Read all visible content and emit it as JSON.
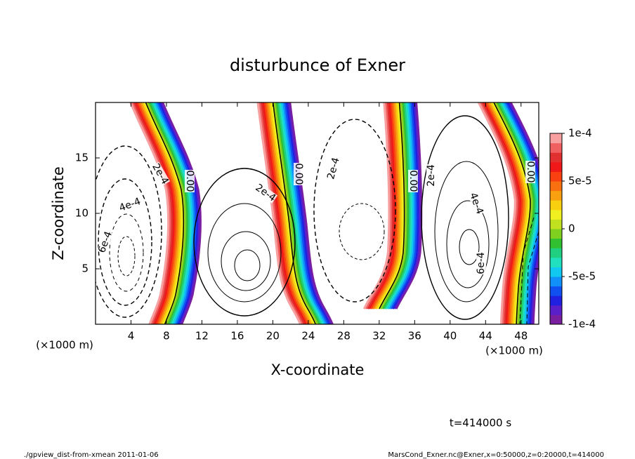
{
  "chart_data": {
    "type": "contour",
    "title": "disturbunce of Exner",
    "x_label": "X-coordinate",
    "y_label": "Z-coordinate",
    "x_unit_labels": [
      "(×1000 m)",
      "(×1000 m)"
    ],
    "xlim": [
      0,
      50
    ],
    "xticks": [
      4,
      8,
      12,
      16,
      20,
      24,
      28,
      32,
      36,
      40,
      44,
      48
    ],
    "ylim": [
      0,
      20
    ],
    "yticks": [
      5,
      10,
      15
    ],
    "colorbar": {
      "lim": [
        -0.0001,
        0.0001
      ],
      "ticks": [
        {
          "value": 0.0001,
          "label": "1e-4"
        },
        {
          "value": 5e-05,
          "label": "5e-5"
        },
        {
          "value": 0,
          "label": "0"
        },
        {
          "value": -5e-05,
          "label": "-5e-5"
        },
        {
          "value": -0.0001,
          "label": "-1e-4"
        }
      ],
      "colors": [
        "#7a1fa0",
        "#5a1fc8",
        "#2020e0",
        "#1050f0",
        "#1090f8",
        "#10c8f0",
        "#20e0c0",
        "#20d080",
        "#30c030",
        "#80d020",
        "#c0e020",
        "#f0f020",
        "#f8d010",
        "#f8a010",
        "#f87010",
        "#f84010",
        "#f01818",
        "#e03030",
        "#f06060",
        "#f8a0a0"
      ]
    },
    "annotations": [
      "2e-4",
      "4e-4",
      "6e-4",
      "0.00",
      "2e-4",
      "0.00",
      "2e-4",
      "0.00",
      "2e-4",
      "4e-4",
      "6e-4",
      "0.00"
    ],
    "time_label": "t=414000 s",
    "footer_left": "./gpview_dist-from-xmean  2011-01-06",
    "footer_right": "MarsCond_Exner.nc@Exner,x=0:50000,z=0:20000,t=414000"
  }
}
